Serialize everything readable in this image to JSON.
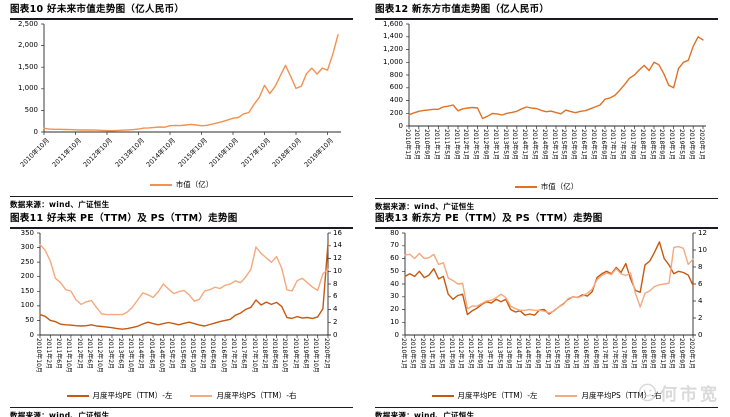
{
  "page": {
    "background": "#ffffff"
  },
  "source_label": "数据来源：wind、广证恒生",
  "watermark": {
    "text": "何市宽",
    "color": "#c2c2c2",
    "icon": "smiley-face-icon"
  },
  "colors": {
    "rule": "#1a1a24",
    "axis": "#2b2b2b",
    "mktcap_tal": "#F2924E",
    "mktcap_edu": "#DE7226",
    "pe": "#C65911",
    "ps": "#F4A97E"
  },
  "chart_data": [
    {
      "id": "tal-mktcap",
      "type": "line",
      "title": "图表10 好未来市值走势图（亿人民币）",
      "x_label_style": "diag",
      "x_tick_every_points": 6,
      "x_tick_labels": [
        "2010年10月",
        "2011年10月",
        "2012年10月",
        "2013年10月",
        "2014年10月",
        "2015年10月",
        "2016年10月",
        "2017年10月",
        "2018年10月",
        "2019年10月"
      ],
      "y_left": {
        "min": 0,
        "max": 2500,
        "step": 500
      },
      "grid": false,
      "legend_position": "bottom",
      "series": [
        {
          "name": "市值（亿）",
          "axis": "left",
          "color_key": "mktcap_tal",
          "values": [
            85,
            68,
            62,
            63,
            58,
            56,
            52,
            47,
            48,
            47,
            43,
            38,
            33,
            29,
            38,
            42,
            48,
            56,
            68,
            90,
            96,
            106,
            116,
            112,
            145,
            152,
            148,
            162,
            175,
            162,
            143,
            155,
            180,
            210,
            240,
            280,
            320,
            335,
            420,
            450,
            640,
            800,
            1080,
            890,
            1050,
            1300,
            1545,
            1280,
            1010,
            1060,
            1350,
            1480,
            1340,
            1480,
            1430,
            1800,
            2250
          ]
        }
      ]
    },
    {
      "id": "edu-mktcap",
      "type": "line",
      "title": "图表12 新东方市值走势图（亿人民币）",
      "x_label_style": "vert",
      "x_tick_every_points": 2,
      "x_tick_labels": [
        "2010年1月",
        "2010年5月",
        "2010年9月",
        "2011年1月",
        "2011年5月",
        "2011年9月",
        "2012年1月",
        "2012年5月",
        "2012年9月",
        "2013年1月",
        "2013年5月",
        "2013年9月",
        "2014年1月",
        "2014年5月",
        "2014年9月",
        "2015年1月",
        "2015年5月",
        "2015年9月",
        "2016年1月",
        "2016年5月",
        "2016年9月",
        "2017年1月",
        "2017年5月",
        "2017年9月",
        "2018年1月",
        "2018年5月",
        "2018年9月",
        "2019年1月",
        "2019年5月",
        "2019年9月",
        "2020年1月"
      ],
      "y_left": {
        "min": 0,
        "max": 1600,
        "step": 200
      },
      "grid": false,
      "legend_position": "bottom",
      "series": [
        {
          "name": "市值（亿）",
          "axis": "left",
          "color_key": "mktcap_edu",
          "values": [
            175,
            205,
            230,
            245,
            252,
            262,
            262,
            300,
            310,
            330,
            238,
            270,
            282,
            290,
            283,
            118,
            152,
            196,
            190,
            172,
            200,
            214,
            230,
            270,
            298,
            281,
            275,
            245,
            224,
            233,
            210,
            192,
            250,
            226,
            208,
            230,
            240,
            270,
            300,
            330,
            420,
            440,
            480,
            560,
            650,
            750,
            800,
            880,
            950,
            870,
            1000,
            960,
            820,
            640,
            600,
            900,
            1000,
            1030,
            1250,
            1400,
            1350
          ]
        }
      ]
    },
    {
      "id": "tal-pe-ps",
      "type": "line",
      "title": "图表11 好未来 PE（TTM）及 PS（TTM）走势图",
      "x_label_style": "vert",
      "x_tick_every_points": 2,
      "x_tick_labels": [
        "2010年10月",
        "2011年2月",
        "2011年6月",
        "2011年10月",
        "2012年2月",
        "2012年6月",
        "2012年10月",
        "2013年2月",
        "2013年6月",
        "2013年10月",
        "2014年2月",
        "2014年6月",
        "2014年10月",
        "2015年2月",
        "2015年6月",
        "2015年10月",
        "2016年2月",
        "2016年6月",
        "2016年10月",
        "2017年2月",
        "2017年6月",
        "2017年10月",
        "2018年2月",
        "2018年6月",
        "2018年10月",
        "2019年2月",
        "2019年6月",
        "2019年10月",
        "2020年2月"
      ],
      "y_left": {
        "min": 0,
        "max": 350,
        "step": 50
      },
      "y_right": {
        "min": 0,
        "max": 16,
        "step": 2
      },
      "grid": false,
      "legend_position": "bottom",
      "series": [
        {
          "name": "月度平均PE（TTM）-左",
          "axis": "left",
          "color_key": "pe",
          "values": [
            70,
            64,
            50,
            46,
            37,
            35,
            34,
            32,
            31,
            32,
            35,
            31,
            29,
            27,
            25,
            22,
            20,
            22,
            26,
            30,
            38,
            44,
            39,
            35,
            39,
            43,
            39,
            35,
            40,
            44,
            39,
            34,
            31,
            36,
            41,
            46,
            50,
            54,
            68,
            75,
            88,
            95,
            120,
            103,
            113,
            105,
            112,
            98,
            60,
            57,
            63,
            58,
            60,
            57,
            62,
            90,
            315
          ]
        },
        {
          "name": "月度平均PS（TTM）-右",
          "axis": "right",
          "color_key": "ps",
          "values": [
            14.2,
            13.3,
            11.6,
            8.9,
            8.2,
            7.1,
            6.9,
            5.5,
            4.8,
            5.2,
            5.4,
            4.3,
            3.3,
            3.2,
            3.2,
            3.2,
            3.2,
            3.6,
            4.4,
            5.5,
            6.6,
            6.3,
            5.9,
            6.8,
            8.0,
            7.2,
            6.5,
            6.8,
            7.0,
            6.3,
            5.3,
            5.6,
            6.9,
            7.1,
            7.5,
            7.3,
            7.8,
            8.0,
            8.5,
            8.2,
            9.1,
            10.3,
            13.8,
            12.8,
            12.1,
            11.4,
            12.3,
            10.5,
            7.1,
            6.9,
            8.5,
            8.9,
            8.2,
            7.5,
            7.0,
            9.6,
            10.3
          ]
        }
      ]
    },
    {
      "id": "edu-pe-ps",
      "type": "line",
      "title": "图表13 新东方 PE（TTM）及 PS（TTM）走势图",
      "x_label_style": "vert",
      "x_tick_every_points": 2,
      "x_tick_labels": [
        "2010年1月",
        "2010年5月",
        "2010年9月",
        "2011年1月",
        "2011年5月",
        "2011年9月",
        "2012年1月",
        "2012年5月",
        "2012年9月",
        "2013年1月",
        "2013年5月",
        "2013年9月",
        "2014年1月",
        "2014年5月",
        "2014年9月",
        "2015年1月",
        "2015年5月",
        "2015年9月",
        "2016年1月",
        "2016年5月",
        "2016年9月",
        "2017年1月",
        "2017年5月",
        "2017年9月",
        "2018年1月",
        "2018年5月",
        "2018年9月",
        "2019年1月",
        "2019年5月",
        "2019年9月",
        "2020年1月"
      ],
      "y_left": {
        "min": 0,
        "max": 80,
        "step": 10
      },
      "y_right": {
        "min": 0,
        "max": 12,
        "step": 2
      },
      "grid": false,
      "legend_position": "bottom",
      "series": [
        {
          "name": "月度平均PE（TTM）-左",
          "axis": "left",
          "color_key": "pe",
          "values": [
            46,
            48,
            46,
            50,
            45,
            47,
            52,
            44,
            46,
            32,
            28,
            31,
            32,
            16,
            19,
            21,
            24,
            26,
            25,
            28,
            26,
            28,
            20,
            18,
            19,
            15.5,
            16.5,
            15.5,
            19.5,
            20,
            16.5,
            19,
            22,
            24.5,
            28,
            30,
            29.5,
            31.5,
            30.5,
            34,
            45,
            48,
            50,
            48,
            53,
            49,
            56,
            44,
            35,
            33.5,
            55,
            58,
            65,
            73,
            60,
            55,
            48,
            50,
            49,
            47,
            39
          ]
        },
        {
          "name": "月度平均PS（TTM）-右",
          "axis": "right",
          "color_key": "ps",
          "values": [
            9.4,
            9.5,
            9.0,
            9.6,
            9.0,
            9.1,
            9.5,
            8.3,
            8.5,
            6.7,
            6.4,
            6.0,
            6.1,
            3.1,
            3.4,
            3.4,
            3.7,
            4.0,
            4.1,
            4.4,
            4.8,
            4.4,
            3.4,
            3.1,
            2.9,
            2.9,
            3.0,
            2.9,
            2.9,
            2.8,
            2.6,
            2.8,
            3.3,
            3.6,
            4.3,
            4.5,
            4.4,
            4.6,
            4.9,
            5.4,
            6.5,
            7.0,
            7.3,
            7.1,
            7.8,
            7.2,
            7.0,
            7.3,
            4.9,
            3.3,
            4.9,
            5.2,
            5.7,
            5.9,
            6.0,
            6.1,
            10.3,
            10.4,
            10.2,
            8.3,
            8.9
          ]
        }
      ]
    }
  ]
}
